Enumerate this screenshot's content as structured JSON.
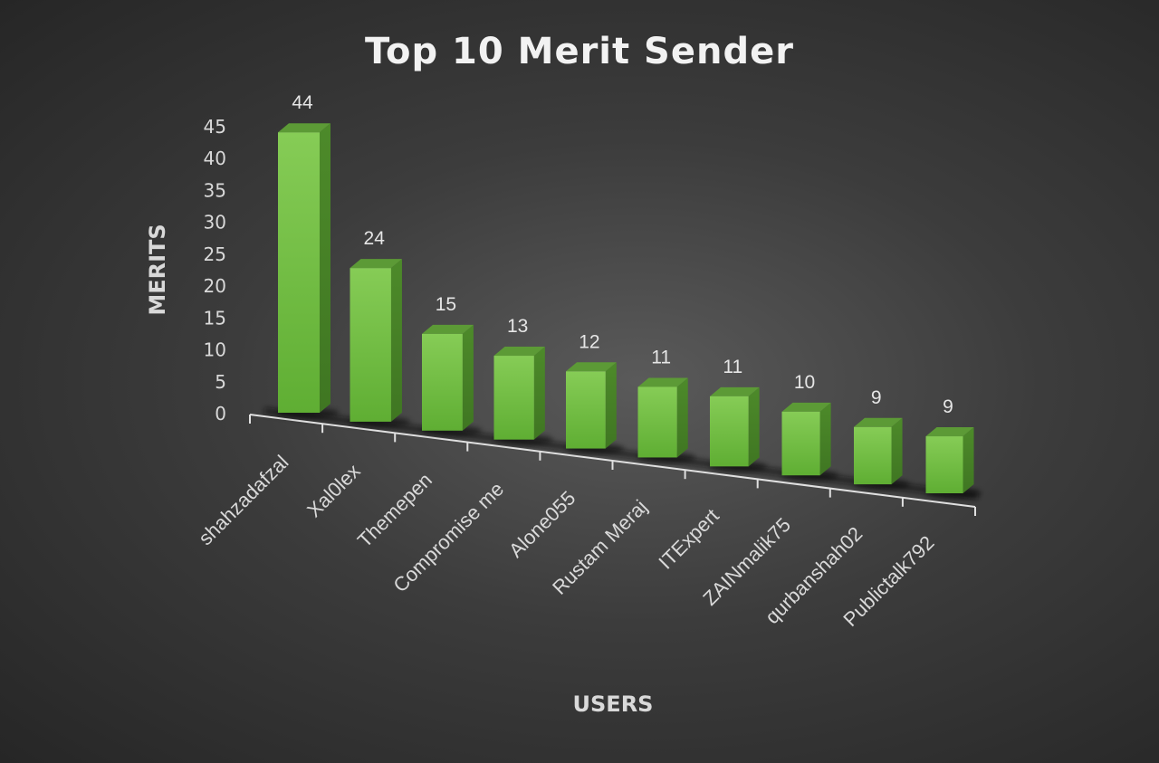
{
  "chart_data": {
    "type": "bar",
    "title": "Top 10 Merit Sender",
    "xlabel": "USERS",
    "ylabel": "MERITS",
    "ylim": [
      0,
      45
    ],
    "y_ticks": [
      0,
      5,
      10,
      15,
      20,
      25,
      30,
      35,
      40,
      45
    ],
    "categories": [
      "shahzadafzal",
      "Xal0lex",
      "Themepen",
      "Compromise me",
      "Alone055",
      "Rustam Meraj",
      "ITExpert",
      "ZAINmalik75",
      "qurbanshah02",
      "Publictalk792"
    ],
    "values": [
      44,
      24,
      15,
      13,
      12,
      11,
      11,
      10,
      9,
      9
    ],
    "data_labels": [
      "44",
      "24",
      "15",
      "13",
      "12",
      "11",
      "11",
      "10",
      "9",
      "9"
    ],
    "bar_color": "#6fbf3f",
    "style": "3d-column",
    "grid": false,
    "legend": "none"
  }
}
